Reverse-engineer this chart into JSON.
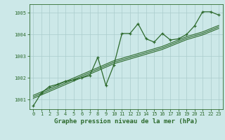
{
  "title": "Graphe pression niveau de la mer (hPa)",
  "bg_color": "#cce8e8",
  "grid_color": "#aacccc",
  "line_color": "#2d6a2d",
  "x_ticks": [
    0,
    1,
    2,
    3,
    4,
    5,
    6,
    7,
    8,
    9,
    10,
    11,
    12,
    13,
    14,
    15,
    16,
    17,
    18,
    19,
    20,
    21,
    22,
    23
  ],
  "y_ticks": [
    1001,
    1002,
    1003,
    1004,
    1005
  ],
  "ylim": [
    1000.55,
    1005.4
  ],
  "xlim": [
    -0.5,
    23.5
  ],
  "main_line": [
    1000.7,
    1001.3,
    1001.6,
    1001.7,
    1001.85,
    1001.9,
    1002.0,
    1002.1,
    1002.95,
    1001.65,
    1002.6,
    1004.05,
    1004.05,
    1004.5,
    1003.8,
    1003.65,
    1004.05,
    1003.75,
    1003.8,
    1004.0,
    1004.4,
    1005.05,
    1005.05,
    1004.9
  ],
  "trend_line1": [
    1001.05,
    1001.21,
    1001.37,
    1001.53,
    1001.69,
    1001.85,
    1002.01,
    1002.17,
    1002.33,
    1002.49,
    1002.65,
    1002.76,
    1002.87,
    1002.98,
    1003.09,
    1003.2,
    1003.31,
    1003.46,
    1003.61,
    1003.76,
    1003.87,
    1003.98,
    1004.13,
    1004.28
  ],
  "trend_line2": [
    1001.12,
    1001.28,
    1001.44,
    1001.6,
    1001.76,
    1001.92,
    1002.08,
    1002.24,
    1002.4,
    1002.56,
    1002.72,
    1002.83,
    1002.94,
    1003.05,
    1003.16,
    1003.27,
    1003.38,
    1003.53,
    1003.68,
    1003.83,
    1003.94,
    1004.05,
    1004.2,
    1004.35
  ],
  "trend_line3": [
    1001.19,
    1001.35,
    1001.51,
    1001.67,
    1001.83,
    1001.99,
    1002.15,
    1002.31,
    1002.47,
    1002.63,
    1002.79,
    1002.9,
    1003.01,
    1003.12,
    1003.23,
    1003.34,
    1003.45,
    1003.6,
    1003.75,
    1003.9,
    1004.01,
    1004.12,
    1004.27,
    1004.42
  ],
  "title_fontsize": 6.5,
  "tick_fontsize": 5.0
}
